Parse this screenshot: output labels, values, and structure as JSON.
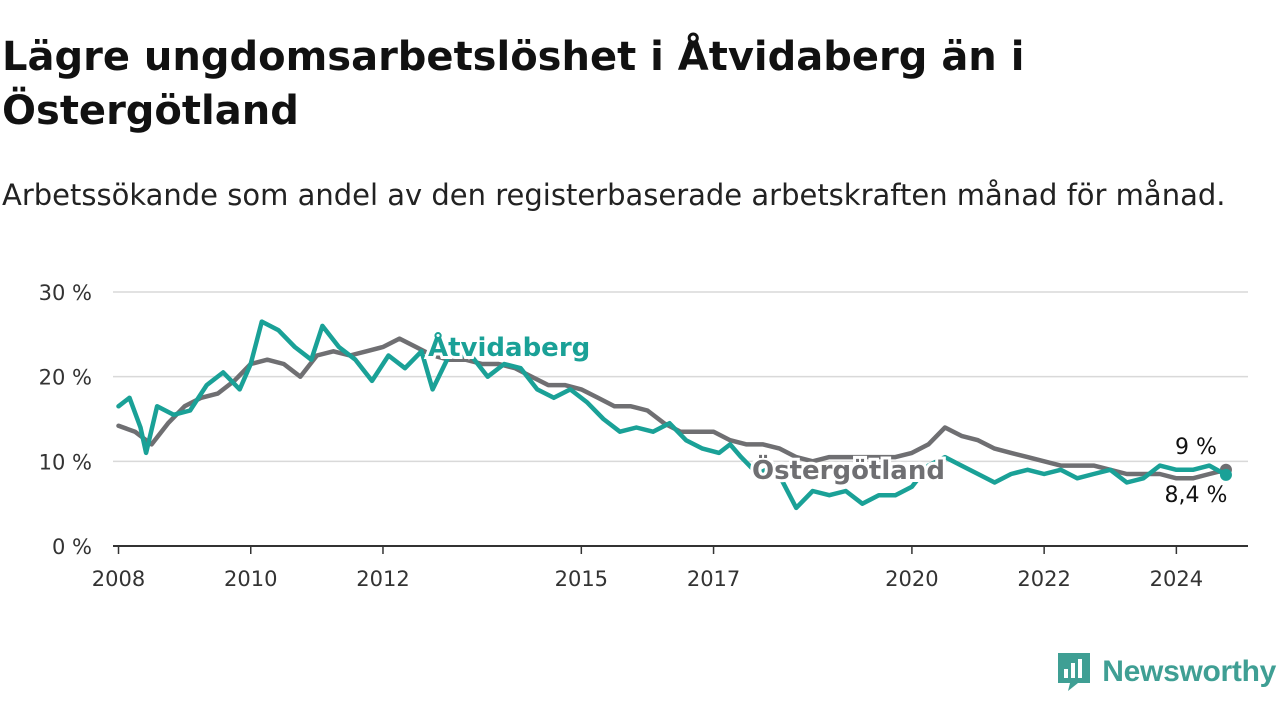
{
  "header": {
    "title": "Lägre ungdomsarbetslöshet i Åtvidaberg än i Östergötland",
    "subtitle": "Arbetssökande som andel av den registerbaserade arbetskraften månad för månad."
  },
  "brand": {
    "name": "Newsworthy",
    "icon": "newsworthy-logo-icon"
  },
  "colors": {
    "atvidaberg": "#1aa197",
    "ostergotland": "#6f6f72",
    "grid": "#d9d9d9",
    "axis": "#333333"
  },
  "chart_data": {
    "type": "line",
    "title": "Lägre ungdomsarbetslöshet i Åtvidaberg än i Östergötland",
    "subtitle": "Arbetssökande som andel av den registerbaserade arbetskraften månad för månad.",
    "xlabel": "",
    "ylabel": "",
    "xlim": [
      "2008-01",
      "2024-12"
    ],
    "ylim": [
      0,
      30
    ],
    "x_ticks": [
      "2008",
      "2010",
      "2012",
      "2015",
      "2017",
      "2020",
      "2022",
      "2024"
    ],
    "y_ticks": [
      "0 %",
      "10 %",
      "20 %",
      "30 %"
    ],
    "grid": "horizontal",
    "series": [
      {
        "name": "Östergötland",
        "color": "#6f6f72",
        "end_label": "9 %",
        "points": [
          [
            "2008-01",
            14.2
          ],
          [
            "2008-04",
            13.5
          ],
          [
            "2008-07",
            12.0
          ],
          [
            "2008-10",
            14.5
          ],
          [
            "2009-01",
            16.5
          ],
          [
            "2009-04",
            17.5
          ],
          [
            "2009-07",
            18.0
          ],
          [
            "2009-10",
            19.5
          ],
          [
            "2010-01",
            21.5
          ],
          [
            "2010-04",
            22.0
          ],
          [
            "2010-07",
            21.5
          ],
          [
            "2010-10",
            20.0
          ],
          [
            "2011-01",
            22.5
          ],
          [
            "2011-04",
            23.0
          ],
          [
            "2011-07",
            22.5
          ],
          [
            "2011-10",
            23.0
          ],
          [
            "2012-01",
            23.5
          ],
          [
            "2012-04",
            24.5
          ],
          [
            "2012-07",
            23.5
          ],
          [
            "2012-10",
            22.5
          ],
          [
            "2013-01",
            22.0
          ],
          [
            "2013-04",
            22.0
          ],
          [
            "2013-07",
            21.5
          ],
          [
            "2013-10",
            21.5
          ],
          [
            "2014-01",
            21.0
          ],
          [
            "2014-04",
            20.0
          ],
          [
            "2014-07",
            19.0
          ],
          [
            "2014-10",
            19.0
          ],
          [
            "2015-01",
            18.5
          ],
          [
            "2015-04",
            17.5
          ],
          [
            "2015-07",
            16.5
          ],
          [
            "2015-10",
            16.5
          ],
          [
            "2016-01",
            16.0
          ],
          [
            "2016-04",
            14.5
          ],
          [
            "2016-07",
            13.5
          ],
          [
            "2016-10",
            13.5
          ],
          [
            "2017-01",
            13.5
          ],
          [
            "2017-04",
            12.5
          ],
          [
            "2017-07",
            12.0
          ],
          [
            "2017-10",
            12.0
          ],
          [
            "2018-01",
            11.5
          ],
          [
            "2018-04",
            10.5
          ],
          [
            "2018-07",
            10.0
          ],
          [
            "2018-10",
            10.5
          ],
          [
            "2019-01",
            10.5
          ],
          [
            "2019-04",
            10.5
          ],
          [
            "2019-07",
            10.5
          ],
          [
            "2019-10",
            10.5
          ],
          [
            "2020-01",
            11.0
          ],
          [
            "2020-04",
            12.0
          ],
          [
            "2020-07",
            14.0
          ],
          [
            "2020-10",
            13.0
          ],
          [
            "2021-01",
            12.5
          ],
          [
            "2021-04",
            11.5
          ],
          [
            "2021-07",
            11.0
          ],
          [
            "2021-10",
            10.5
          ],
          [
            "2022-01",
            10.0
          ],
          [
            "2022-04",
            9.5
          ],
          [
            "2022-07",
            9.5
          ],
          [
            "2022-10",
            9.5
          ],
          [
            "2023-01",
            9.0
          ],
          [
            "2023-04",
            8.5
          ],
          [
            "2023-07",
            8.5
          ],
          [
            "2023-10",
            8.5
          ],
          [
            "2024-01",
            8.0
          ],
          [
            "2024-04",
            8.0
          ],
          [
            "2024-07",
            8.5
          ],
          [
            "2024-10",
            9.0
          ]
        ]
      },
      {
        "name": "Åtvidaberg",
        "color": "#1aa197",
        "end_label": "8,4 %",
        "points": [
          [
            "2008-01",
            16.5
          ],
          [
            "2008-03",
            17.5
          ],
          [
            "2008-05",
            14.0
          ],
          [
            "2008-06",
            11.0
          ],
          [
            "2008-08",
            16.5
          ],
          [
            "2008-11",
            15.5
          ],
          [
            "2009-02",
            16.0
          ],
          [
            "2009-05",
            19.0
          ],
          [
            "2009-08",
            20.5
          ],
          [
            "2009-11",
            18.5
          ],
          [
            "2010-01",
            21.5
          ],
          [
            "2010-03",
            26.5
          ],
          [
            "2010-06",
            25.5
          ],
          [
            "2010-09",
            23.5
          ],
          [
            "2010-12",
            22.0
          ],
          [
            "2011-02",
            26.0
          ],
          [
            "2011-05",
            23.5
          ],
          [
            "2011-08",
            22.0
          ],
          [
            "2011-11",
            19.5
          ],
          [
            "2012-02",
            22.5
          ],
          [
            "2012-05",
            21.0
          ],
          [
            "2012-08",
            23.0
          ],
          [
            "2012-10",
            18.5
          ],
          [
            "2013-01",
            22.5
          ],
          [
            "2013-05",
            22.5
          ],
          [
            "2013-08",
            20.0
          ],
          [
            "2013-11",
            21.5
          ],
          [
            "2014-02",
            21.0
          ],
          [
            "2014-05",
            18.5
          ],
          [
            "2014-08",
            17.5
          ],
          [
            "2014-11",
            18.5
          ],
          [
            "2015-02",
            17.0
          ],
          [
            "2015-05",
            15.0
          ],
          [
            "2015-08",
            13.5
          ],
          [
            "2015-11",
            14.0
          ],
          [
            "2016-02",
            13.5
          ],
          [
            "2016-05",
            14.5
          ],
          [
            "2016-08",
            12.5
          ],
          [
            "2016-11",
            11.5
          ],
          [
            "2017-02",
            11.0
          ],
          [
            "2017-04",
            12.0
          ],
          [
            "2017-06",
            10.5
          ],
          [
            "2017-09",
            8.5
          ],
          [
            "2017-12",
            9.5
          ],
          [
            "2018-02",
            7.0
          ],
          [
            "2018-04",
            4.5
          ],
          [
            "2018-07",
            6.5
          ],
          [
            "2018-10",
            6.0
          ],
          [
            "2019-01",
            6.5
          ],
          [
            "2019-04",
            5.0
          ],
          [
            "2019-07",
            6.0
          ],
          [
            "2019-10",
            6.0
          ],
          [
            "2020-01",
            7.0
          ],
          [
            "2020-04",
            9.5
          ],
          [
            "2020-07",
            10.5
          ],
          [
            "2020-10",
            9.5
          ],
          [
            "2021-01",
            8.5
          ],
          [
            "2021-04",
            7.5
          ],
          [
            "2021-07",
            8.5
          ],
          [
            "2021-10",
            9.0
          ],
          [
            "2022-01",
            8.5
          ],
          [
            "2022-04",
            9.0
          ],
          [
            "2022-07",
            8.0
          ],
          [
            "2022-10",
            8.5
          ],
          [
            "2023-01",
            9.0
          ],
          [
            "2023-04",
            7.5
          ],
          [
            "2023-07",
            8.0
          ],
          [
            "2023-10",
            9.5
          ],
          [
            "2024-01",
            9.0
          ],
          [
            "2024-04",
            9.0
          ],
          [
            "2024-07",
            9.5
          ],
          [
            "2024-10",
            8.4
          ]
        ]
      }
    ]
  }
}
